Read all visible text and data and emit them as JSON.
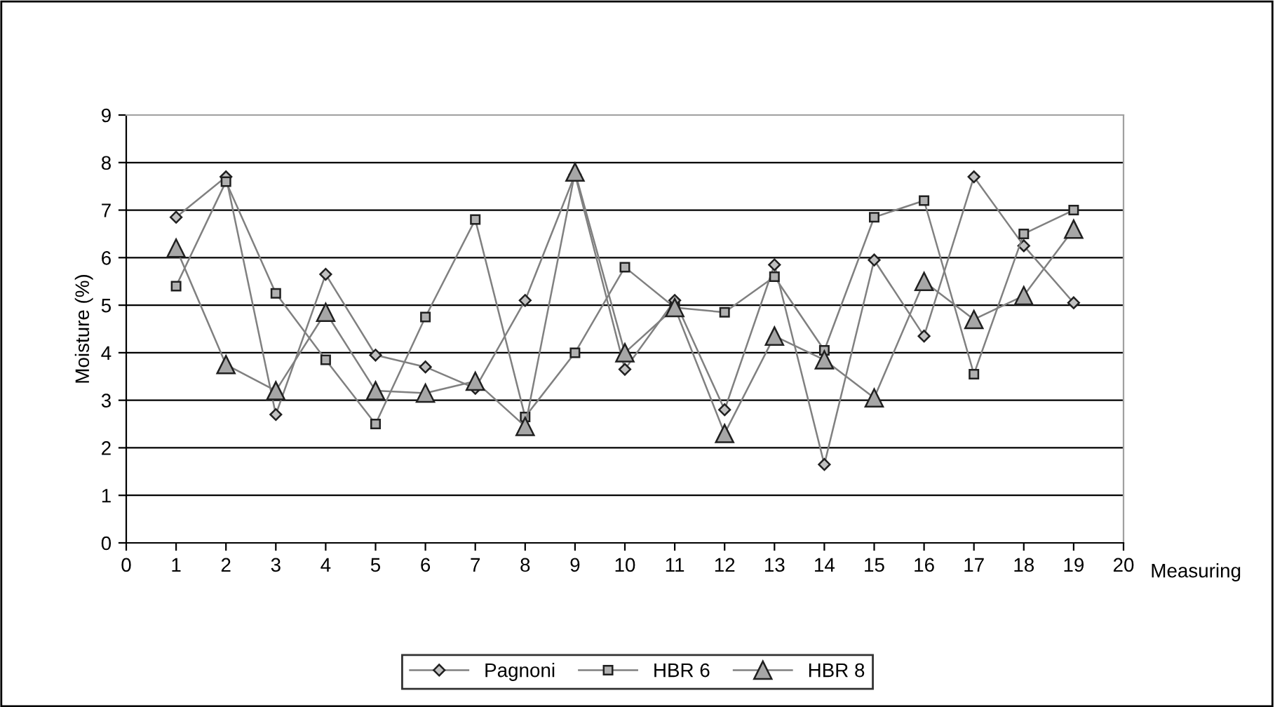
{
  "chart_data": {
    "type": "line",
    "xlabel": "Measuring",
    "ylabel": "Moisture (%)",
    "x": [
      1,
      2,
      3,
      4,
      5,
      6,
      7,
      8,
      9,
      10,
      11,
      12,
      13,
      14,
      15,
      16,
      17,
      18,
      19
    ],
    "xlim": [
      0,
      20
    ],
    "xticks": [
      0,
      1,
      2,
      3,
      4,
      5,
      6,
      7,
      8,
      9,
      10,
      11,
      12,
      13,
      14,
      15,
      16,
      17,
      18,
      19,
      20
    ],
    "ylim": [
      0,
      9
    ],
    "yticks": [
      0,
      1,
      2,
      3,
      4,
      5,
      6,
      7,
      8,
      9
    ],
    "grid": "y",
    "legend": "bottom",
    "series": [
      {
        "name": "Pagnoni",
        "color": "#808080",
        "marker": "diamond",
        "values": [
          6.85,
          7.7,
          2.7,
          5.65,
          3.95,
          3.7,
          3.25,
          5.1,
          7.75,
          3.65,
          5.1,
          2.8,
          5.85,
          1.65,
          5.95,
          4.35,
          7.7,
          6.25,
          5.05
        ]
      },
      {
        "name": "HBR 6",
        "color": "#808080",
        "marker": "square",
        "values": [
          5.4,
          7.6,
          5.25,
          3.85,
          2.5,
          4.75,
          6.8,
          2.65,
          4.0,
          5.8,
          4.95,
          4.85,
          5.6,
          4.05,
          6.85,
          7.2,
          3.55,
          6.5,
          7.0
        ]
      },
      {
        "name": "HBR 8",
        "color": "#808080",
        "marker": "triangle",
        "values": [
          6.2,
          3.75,
          3.2,
          4.85,
          3.2,
          3.15,
          3.4,
          2.45,
          7.8,
          4.0,
          4.95,
          2.3,
          4.35,
          3.85,
          3.05,
          5.5,
          4.7,
          5.2,
          6.6
        ]
      }
    ]
  }
}
